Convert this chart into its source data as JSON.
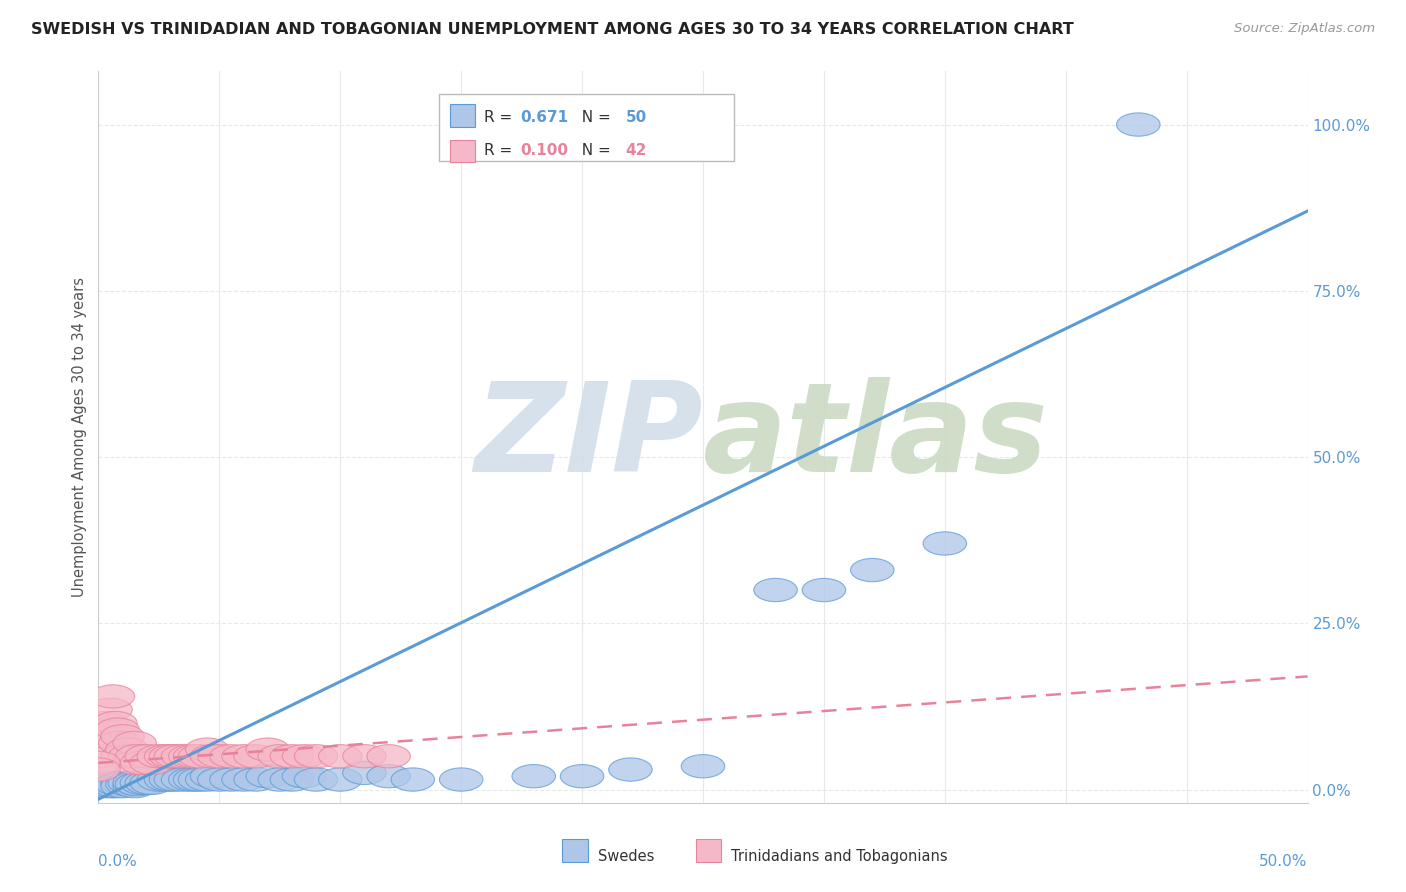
{
  "title": "SWEDISH VS TRINIDADIAN AND TOBAGONIAN UNEMPLOYMENT AMONG AGES 30 TO 34 YEARS CORRELATION CHART",
  "source": "Source: ZipAtlas.com",
  "ylabel": "Unemployment Among Ages 30 to 34 years",
  "ytick_labels": [
    "0.0%",
    "25.0%",
    "50.0%",
    "75.0%",
    "100.0%"
  ],
  "ytick_values": [
    0.0,
    25.0,
    50.0,
    75.0,
    100.0
  ],
  "xlim": [
    0.0,
    50.0
  ],
  "ylim": [
    -2.0,
    108.0
  ],
  "blue_r": "0.671",
  "blue_n": "50",
  "pink_r": "0.100",
  "pink_n": "42",
  "blue_line_x": [
    -2.0,
    50.0
  ],
  "blue_line_y": [
    -5.0,
    87.0
  ],
  "pink_line_x": [
    0.0,
    50.0
  ],
  "pink_line_y": [
    4.0,
    17.0
  ],
  "swedes": [
    [
      0.0,
      1.0
    ],
    [
      0.2,
      0.5
    ],
    [
      0.3,
      0.8
    ],
    [
      0.5,
      0.5
    ],
    [
      0.6,
      1.0
    ],
    [
      0.7,
      0.5
    ],
    [
      0.8,
      0.8
    ],
    [
      1.0,
      1.0
    ],
    [
      1.0,
      0.5
    ],
    [
      1.2,
      0.8
    ],
    [
      1.3,
      1.0
    ],
    [
      1.5,
      0.5
    ],
    [
      1.5,
      1.0
    ],
    [
      1.6,
      0.8
    ],
    [
      1.8,
      1.0
    ],
    [
      2.0,
      1.0
    ],
    [
      2.2,
      1.0
    ],
    [
      2.5,
      1.5
    ],
    [
      2.8,
      1.5
    ],
    [
      3.0,
      1.5
    ],
    [
      3.2,
      1.5
    ],
    [
      3.5,
      1.5
    ],
    [
      3.8,
      1.5
    ],
    [
      4.0,
      1.5
    ],
    [
      4.2,
      1.5
    ],
    [
      4.5,
      1.5
    ],
    [
      4.7,
      2.0
    ],
    [
      5.0,
      1.5
    ],
    [
      5.5,
      1.5
    ],
    [
      6.0,
      1.5
    ],
    [
      6.5,
      1.5
    ],
    [
      7.0,
      2.0
    ],
    [
      7.5,
      1.5
    ],
    [
      8.0,
      1.5
    ],
    [
      8.5,
      2.0
    ],
    [
      9.0,
      1.5
    ],
    [
      10.0,
      1.5
    ],
    [
      11.0,
      2.5
    ],
    [
      12.0,
      2.0
    ],
    [
      13.0,
      1.5
    ],
    [
      15.0,
      1.5
    ],
    [
      18.0,
      2.0
    ],
    [
      20.0,
      2.0
    ],
    [
      22.0,
      3.0
    ],
    [
      25.0,
      3.5
    ],
    [
      28.0,
      30.0
    ],
    [
      30.0,
      30.0
    ],
    [
      32.0,
      33.0
    ],
    [
      35.0,
      37.0
    ],
    [
      43.0,
      100.0
    ]
  ],
  "trinis": [
    [
      0.0,
      5.0
    ],
    [
      0.2,
      8.0
    ],
    [
      0.3,
      10.0
    ],
    [
      0.5,
      12.0
    ],
    [
      0.6,
      14.0
    ],
    [
      0.7,
      10.0
    ],
    [
      0.8,
      9.0
    ],
    [
      0.9,
      7.0
    ],
    [
      1.0,
      5.0
    ],
    [
      1.0,
      8.0
    ],
    [
      1.2,
      6.0
    ],
    [
      1.3,
      5.0
    ],
    [
      1.5,
      7.0
    ],
    [
      1.5,
      4.0
    ],
    [
      1.6,
      5.0
    ],
    [
      1.8,
      4.0
    ],
    [
      2.0,
      5.0
    ],
    [
      2.2,
      4.0
    ],
    [
      2.5,
      5.0
    ],
    [
      2.8,
      5.0
    ],
    [
      3.0,
      5.0
    ],
    [
      3.2,
      5.0
    ],
    [
      3.5,
      5.0
    ],
    [
      3.8,
      5.0
    ],
    [
      4.0,
      5.0
    ],
    [
      4.2,
      5.0
    ],
    [
      4.5,
      6.0
    ],
    [
      4.7,
      5.0
    ],
    [
      5.0,
      5.0
    ],
    [
      5.5,
      5.0
    ],
    [
      6.0,
      5.0
    ],
    [
      6.5,
      5.0
    ],
    [
      7.0,
      6.0
    ],
    [
      7.5,
      5.0
    ],
    [
      8.0,
      5.0
    ],
    [
      8.5,
      5.0
    ],
    [
      9.0,
      5.0
    ],
    [
      10.0,
      5.0
    ],
    [
      11.0,
      5.0
    ],
    [
      12.0,
      5.0
    ],
    [
      0.0,
      4.0
    ],
    [
      0.0,
      3.0
    ]
  ],
  "blue_color": "#5b9bd5",
  "blue_fill": "#aec6e8",
  "pink_color": "#e8829a",
  "pink_fill": "#f5b8c8",
  "background_color": "#ffffff",
  "grid_color": "#e8e8e8",
  "watermark_zip_color": "#d0dce8",
  "watermark_atlas_color": "#c8d8c0"
}
